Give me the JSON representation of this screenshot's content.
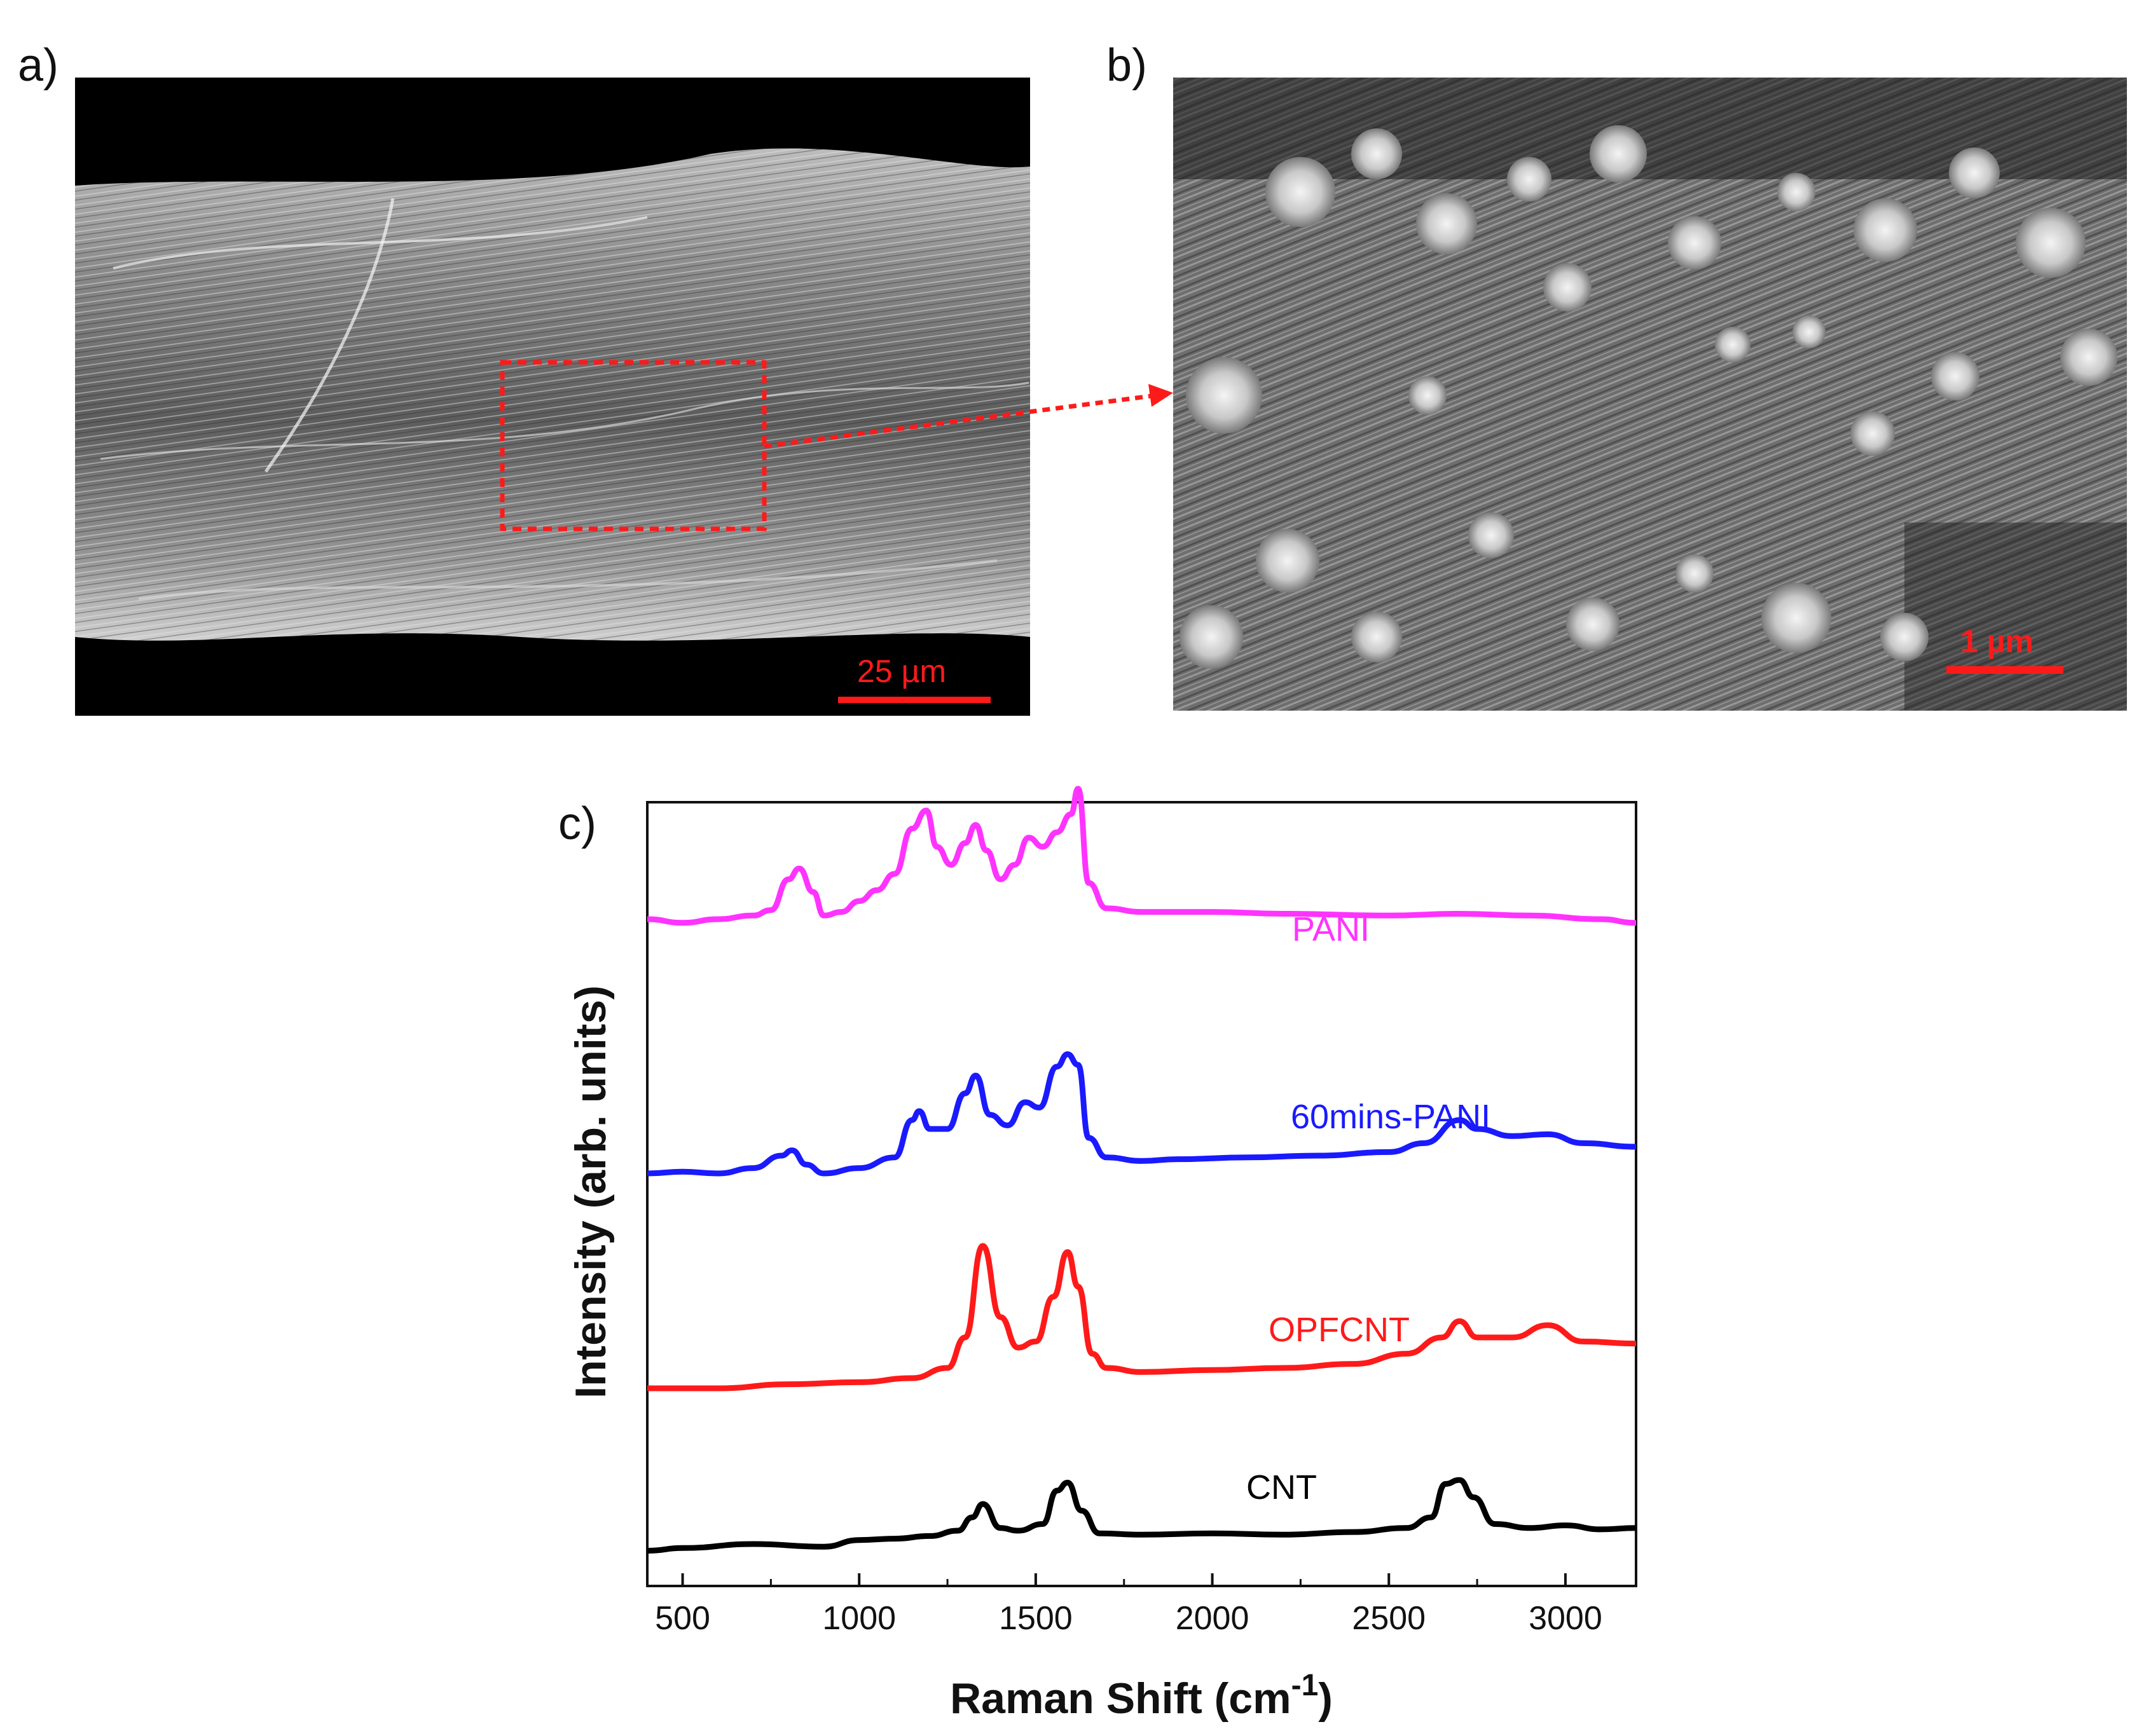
{
  "panels": {
    "a": {
      "label": "a)",
      "scale_bar": "25 µm"
    },
    "b": {
      "label": "b)",
      "scale_bar": "1 µm"
    },
    "c": {
      "label": "c)"
    }
  },
  "colors": {
    "PANI": "#ff33ff",
    "60mins-PANI": "#1a1aff",
    "OPFCNT": "#ff1a1a",
    "CNT": "#000000",
    "annotation": "#ff1a1a"
  },
  "chart_data": {
    "type": "line",
    "xlabel": "Raman Shift (cm",
    "xlabel_superscript": "-1",
    "xlabel_close": ")",
    "ylabel": "Intensity (arb. units)",
    "xlim": [
      400,
      3200
    ],
    "xticks": [
      500,
      1000,
      1500,
      2000,
      2500,
      3000
    ],
    "yticks": [],
    "grid": false,
    "legend": "inline labels next to each trace",
    "series": [
      {
        "name": "PANI",
        "color": "#ff33ff",
        "points": [
          [
            400,
            0.4
          ],
          [
            500,
            0.38
          ],
          [
            600,
            0.4
          ],
          [
            700,
            0.42
          ],
          [
            750,
            0.45
          ],
          [
            800,
            0.62
          ],
          [
            830,
            0.68
          ],
          [
            870,
            0.55
          ],
          [
            900,
            0.42
          ],
          [
            950,
            0.44
          ],
          [
            1000,
            0.5
          ],
          [
            1050,
            0.56
          ],
          [
            1100,
            0.65
          ],
          [
            1150,
            0.9
          ],
          [
            1190,
            1.0
          ],
          [
            1220,
            0.8
          ],
          [
            1260,
            0.7
          ],
          [
            1300,
            0.82
          ],
          [
            1330,
            0.92
          ],
          [
            1360,
            0.78
          ],
          [
            1400,
            0.62
          ],
          [
            1440,
            0.7
          ],
          [
            1480,
            0.85
          ],
          [
            1520,
            0.8
          ],
          [
            1560,
            0.88
          ],
          [
            1600,
            0.98
          ],
          [
            1620,
            1.12
          ],
          [
            1650,
            0.6
          ],
          [
            1700,
            0.46
          ],
          [
            1800,
            0.44
          ],
          [
            2000,
            0.44
          ],
          [
            2200,
            0.43
          ],
          [
            2500,
            0.42
          ],
          [
            2700,
            0.43
          ],
          [
            2900,
            0.42
          ],
          [
            3100,
            0.4
          ],
          [
            3200,
            0.38
          ]
        ]
      },
      {
        "name": "60mins-PANI",
        "color": "#1a1aff",
        "points": [
          [
            400,
            0.05
          ],
          [
            500,
            0.06
          ],
          [
            600,
            0.05
          ],
          [
            700,
            0.08
          ],
          [
            780,
            0.15
          ],
          [
            810,
            0.18
          ],
          [
            850,
            0.1
          ],
          [
            900,
            0.05
          ],
          [
            1000,
            0.08
          ],
          [
            1100,
            0.14
          ],
          [
            1150,
            0.35
          ],
          [
            1170,
            0.4
          ],
          [
            1200,
            0.3
          ],
          [
            1250,
            0.3
          ],
          [
            1300,
            0.5
          ],
          [
            1330,
            0.6
          ],
          [
            1370,
            0.38
          ],
          [
            1420,
            0.32
          ],
          [
            1470,
            0.45
          ],
          [
            1510,
            0.42
          ],
          [
            1560,
            0.65
          ],
          [
            1590,
            0.72
          ],
          [
            1620,
            0.66
          ],
          [
            1650,
            0.25
          ],
          [
            1700,
            0.14
          ],
          [
            1800,
            0.12
          ],
          [
            1900,
            0.13
          ],
          [
            2100,
            0.14
          ],
          [
            2300,
            0.15
          ],
          [
            2500,
            0.17
          ],
          [
            2600,
            0.22
          ],
          [
            2700,
            0.35
          ],
          [
            2750,
            0.3
          ],
          [
            2850,
            0.26
          ],
          [
            2950,
            0.27
          ],
          [
            3050,
            0.22
          ],
          [
            3200,
            0.2
          ]
        ]
      },
      {
        "name": "OPFCNT",
        "color": "#ff1a1a",
        "points": [
          [
            400,
            0.05
          ],
          [
            600,
            0.05
          ],
          [
            800,
            0.07
          ],
          [
            1000,
            0.08
          ],
          [
            1150,
            0.1
          ],
          [
            1250,
            0.15
          ],
          [
            1300,
            0.3
          ],
          [
            1350,
            0.75
          ],
          [
            1400,
            0.4
          ],
          [
            1450,
            0.25
          ],
          [
            1500,
            0.28
          ],
          [
            1550,
            0.5
          ],
          [
            1590,
            0.72
          ],
          [
            1620,
            0.55
          ],
          [
            1660,
            0.22
          ],
          [
            1700,
            0.15
          ],
          [
            1800,
            0.13
          ],
          [
            2000,
            0.14
          ],
          [
            2200,
            0.15
          ],
          [
            2400,
            0.17
          ],
          [
            2550,
            0.22
          ],
          [
            2650,
            0.3
          ],
          [
            2700,
            0.38
          ],
          [
            2750,
            0.3
          ],
          [
            2850,
            0.3
          ],
          [
            2950,
            0.36
          ],
          [
            3050,
            0.28
          ],
          [
            3200,
            0.27
          ]
        ]
      },
      {
        "name": "CNT",
        "color": "#000000",
        "points": [
          [
            400,
            0.05
          ],
          [
            500,
            0.07
          ],
          [
            700,
            0.1
          ],
          [
            900,
            0.08
          ],
          [
            1000,
            0.13
          ],
          [
            1100,
            0.14
          ],
          [
            1200,
            0.16
          ],
          [
            1280,
            0.2
          ],
          [
            1320,
            0.3
          ],
          [
            1350,
            0.4
          ],
          [
            1400,
            0.22
          ],
          [
            1450,
            0.2
          ],
          [
            1520,
            0.25
          ],
          [
            1560,
            0.5
          ],
          [
            1590,
            0.56
          ],
          [
            1630,
            0.35
          ],
          [
            1680,
            0.18
          ],
          [
            1800,
            0.17
          ],
          [
            2000,
            0.18
          ],
          [
            2200,
            0.17
          ],
          [
            2400,
            0.19
          ],
          [
            2550,
            0.22
          ],
          [
            2620,
            0.3
          ],
          [
            2660,
            0.55
          ],
          [
            2700,
            0.58
          ],
          [
            2740,
            0.45
          ],
          [
            2800,
            0.25
          ],
          [
            2900,
            0.22
          ],
          [
            3000,
            0.24
          ],
          [
            3100,
            0.21
          ],
          [
            3200,
            0.22
          ]
        ]
      }
    ]
  }
}
